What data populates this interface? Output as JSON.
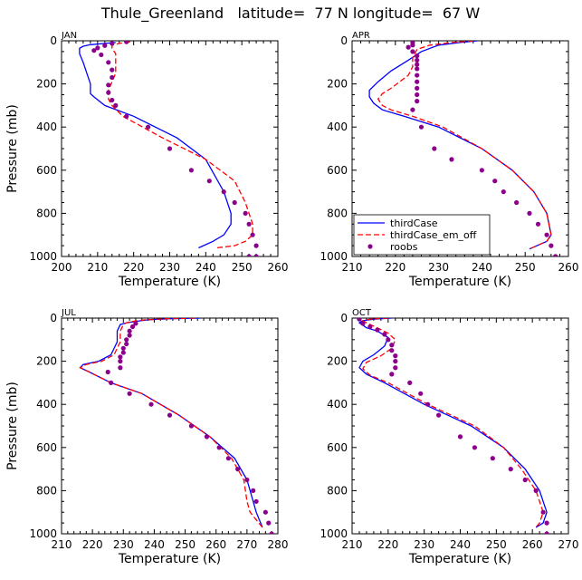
{
  "figure_title": "Thule_Greenland   latitude=  77 N longitude=  67 W",
  "legend": [
    {
      "label": "thirdCase",
      "color": "#0000ff",
      "style": "solid"
    },
    {
      "label": "thirdCase_em_off",
      "color": "#ff0000",
      "style": "dashed"
    },
    {
      "label": "roobs",
      "color": "#8b008b",
      "style": "dot"
    }
  ],
  "chart_data": [
    {
      "type": "line",
      "panel": "JAN",
      "xlabel": "Temperature (K)",
      "ylabel": "Pressure (mb)",
      "xlim": [
        200,
        260
      ],
      "ylim": [
        1000,
        0
      ],
      "xticks": [
        "200",
        "210",
        "220",
        "230",
        "240",
        "250",
        "260"
      ],
      "yticks": [
        "0",
        "200",
        "400",
        "600",
        "800",
        "1000"
      ],
      "series": [
        {
          "name": "thirdCase",
          "color": "#0000ff",
          "style": "solid",
          "x": [
            215,
            212,
            208,
            206,
            205,
            205,
            206,
            207,
            208,
            208,
            208,
            209,
            212,
            220,
            232,
            240,
            245,
            247,
            247,
            245,
            242,
            238
          ],
          "y": [
            8,
            12,
            18,
            25,
            35,
            60,
            100,
            150,
            200,
            230,
            245,
            260,
            300,
            350,
            450,
            550,
            700,
            800,
            850,
            900,
            930,
            960
          ]
        },
        {
          "name": "thirdCase_em_off",
          "color": "#ff0000",
          "style": "dashed",
          "x": [
            219,
            216,
            214,
            214,
            215,
            215,
            215,
            214,
            213,
            213,
            213,
            214,
            217,
            228,
            240,
            248,
            251,
            253,
            253,
            251,
            248,
            243
          ],
          "y": [
            5,
            12,
            20,
            35,
            60,
            100,
            150,
            190,
            230,
            250,
            270,
            300,
            350,
            450,
            550,
            650,
            750,
            850,
            900,
            930,
            950,
            960
          ]
        },
        {
          "name": "roobs",
          "color": "#8b008b",
          "style": "dot",
          "x": [
            218,
            214,
            212,
            210,
            209,
            211,
            213,
            214,
            214,
            213,
            213,
            214,
            215,
            218,
            224,
            230,
            236,
            241,
            245,
            248,
            251,
            252,
            253,
            254,
            254,
            252
          ],
          "y": [
            5,
            12,
            22,
            33,
            45,
            65,
            100,
            135,
            170,
            205,
            240,
            275,
            300,
            350,
            400,
            500,
            600,
            650,
            700,
            750,
            800,
            850,
            900,
            950,
            1000,
            1000
          ]
        }
      ]
    },
    {
      "type": "line",
      "panel": "APR",
      "xlabel": "Temperature (K)",
      "ylabel": "Pressure (mb)",
      "xlim": [
        210,
        260
      ],
      "ylim": [
        1000,
        0
      ],
      "xticks": [
        "210",
        "220",
        "230",
        "240",
        "250",
        "260"
      ],
      "yticks": [
        "0",
        "200",
        "400",
        "600",
        "800",
        "1000"
      ],
      "series": [
        {
          "name": "thirdCase",
          "color": "#0000ff",
          "style": "solid",
          "x": [
            239,
            235,
            230,
            226,
            223,
            219,
            216,
            214,
            214,
            215,
            217,
            222,
            230,
            240,
            247,
            252,
            255,
            256,
            255,
            251
          ],
          "y": [
            0,
            8,
            20,
            50,
            90,
            140,
            190,
            230,
            260,
            290,
            320,
            350,
            400,
            500,
            600,
            700,
            800,
            900,
            930,
            965
          ]
        },
        {
          "name": "thirdCase_em_off",
          "color": "#ff0000",
          "style": "dashed",
          "x": [
            238,
            233,
            228,
            225,
            224,
            224,
            223,
            221,
            219,
            217,
            216,
            217,
            219,
            224,
            231,
            240,
            247,
            252,
            255,
            256,
            255,
            251
          ],
          "y": [
            0,
            8,
            20,
            40,
            80,
            120,
            160,
            190,
            220,
            245,
            270,
            300,
            320,
            350,
            400,
            500,
            600,
            700,
            800,
            900,
            930,
            965
          ]
        },
        {
          "name": "roobs",
          "color": "#8b008b",
          "style": "dot",
          "x": [
            224,
            224,
            223,
            224,
            225,
            225,
            225,
            225,
            225,
            225,
            225,
            225,
            225,
            224,
            226,
            229,
            233,
            240,
            243,
            245,
            248,
            251,
            253,
            255,
            256,
            257,
            257
          ],
          "y": [
            8,
            20,
            30,
            50,
            70,
            90,
            110,
            130,
            160,
            190,
            220,
            250,
            280,
            320,
            400,
            500,
            550,
            600,
            650,
            700,
            750,
            800,
            850,
            900,
            950,
            1000,
            1000
          ]
        }
      ]
    },
    {
      "type": "line",
      "panel": "JUL",
      "xlabel": "Temperature (K)",
      "ylabel": "Pressure (mb)",
      "xlim": [
        210,
        280
      ],
      "ylim": [
        1000,
        0
      ],
      "xticks": [
        "210",
        "220",
        "230",
        "240",
        "250",
        "260",
        "270",
        "280"
      ],
      "yticks": [
        "0",
        "200",
        "400",
        "600",
        "800",
        "1000"
      ],
      "series": [
        {
          "name": "thirdCase",
          "color": "#0000ff",
          "style": "solid",
          "x": [
            255,
            245,
            238,
            234,
            231,
            229,
            228,
            228,
            226,
            222,
            217,
            216,
            219,
            226,
            236,
            248,
            258,
            266,
            270,
            272,
            273,
            275
          ],
          "y": [
            0,
            3,
            8,
            15,
            22,
            30,
            60,
            110,
            170,
            200,
            215,
            230,
            250,
            300,
            350,
            450,
            550,
            650,
            750,
            850,
            900,
            970
          ]
        },
        {
          "name": "thirdCase_em_off",
          "color": "#ff0000",
          "style": "dashed",
          "x": [
            253,
            244,
            237,
            233,
            231,
            230,
            229,
            229,
            227,
            223,
            218,
            216,
            219,
            226,
            236,
            248,
            258,
            265,
            269,
            270,
            271,
            275
          ],
          "y": [
            0,
            3,
            8,
            15,
            22,
            30,
            60,
            110,
            170,
            200,
            215,
            230,
            250,
            300,
            350,
            450,
            550,
            650,
            750,
            850,
            900,
            970
          ]
        },
        {
          "name": "roobs",
          "color": "#8b008b",
          "style": "dot",
          "x": [
            234,
            233,
            232,
            232,
            231,
            231,
            230,
            230,
            229,
            229,
            229,
            225,
            226,
            232,
            239,
            245,
            252,
            257,
            261,
            264,
            267,
            270,
            272,
            273,
            276,
            277,
            278
          ],
          "y": [
            25,
            40,
            60,
            80,
            100,
            120,
            140,
            160,
            180,
            200,
            230,
            250,
            300,
            350,
            400,
            450,
            500,
            550,
            600,
            650,
            700,
            750,
            800,
            850,
            900,
            950,
            1000
          ]
        }
      ]
    },
    {
      "type": "line",
      "panel": "OCT",
      "xlabel": "Temperature (K)",
      "ylabel": "Pressure (mb)",
      "xlim": [
        210,
        270
      ],
      "ylim": [
        1000,
        0
      ],
      "xticks": [
        "210",
        "220",
        "230",
        "240",
        "250",
        "260",
        "270"
      ],
      "yticks": [
        "0",
        "200",
        "400",
        "600",
        "800",
        "1000"
      ],
      "series": [
        {
          "name": "thirdCase",
          "color": "#0000ff",
          "style": "solid",
          "x": [
            221,
            216,
            213,
            212,
            214,
            217,
            220,
            219,
            216,
            213,
            212,
            214,
            219,
            230,
            243,
            252,
            258,
            262,
            264,
            263,
            261
          ],
          "y": [
            0,
            5,
            12,
            22,
            45,
            60,
            90,
            130,
            170,
            200,
            230,
            260,
            300,
            400,
            500,
            600,
            700,
            800,
            900,
            950,
            970
          ]
        },
        {
          "name": "thirdCase_em_off",
          "color": "#ff0000",
          "style": "dashed",
          "x": [
            220,
            215,
            213,
            214,
            217,
            220,
            222,
            221,
            218,
            214,
            213,
            215,
            220,
            231,
            244,
            252,
            257,
            261,
            263,
            262,
            261
          ],
          "y": [
            0,
            5,
            12,
            22,
            45,
            70,
            100,
            140,
            175,
            205,
            235,
            265,
            300,
            400,
            500,
            600,
            700,
            800,
            900,
            950,
            970
          ]
        },
        {
          "name": "roobs",
          "color": "#8b008b",
          "style": "dot",
          "x": [
            212,
            213,
            215,
            217,
            219,
            220,
            221,
            221,
            222,
            222,
            222,
            221,
            226,
            229,
            231,
            234,
            240,
            244,
            249,
            254,
            258,
            261,
            263,
            264,
            264
          ],
          "y": [
            5,
            25,
            40,
            55,
            75,
            100,
            125,
            150,
            175,
            200,
            230,
            260,
            300,
            350,
            400,
            450,
            550,
            600,
            650,
            700,
            750,
            800,
            900,
            950,
            1000
          ]
        }
      ]
    }
  ]
}
